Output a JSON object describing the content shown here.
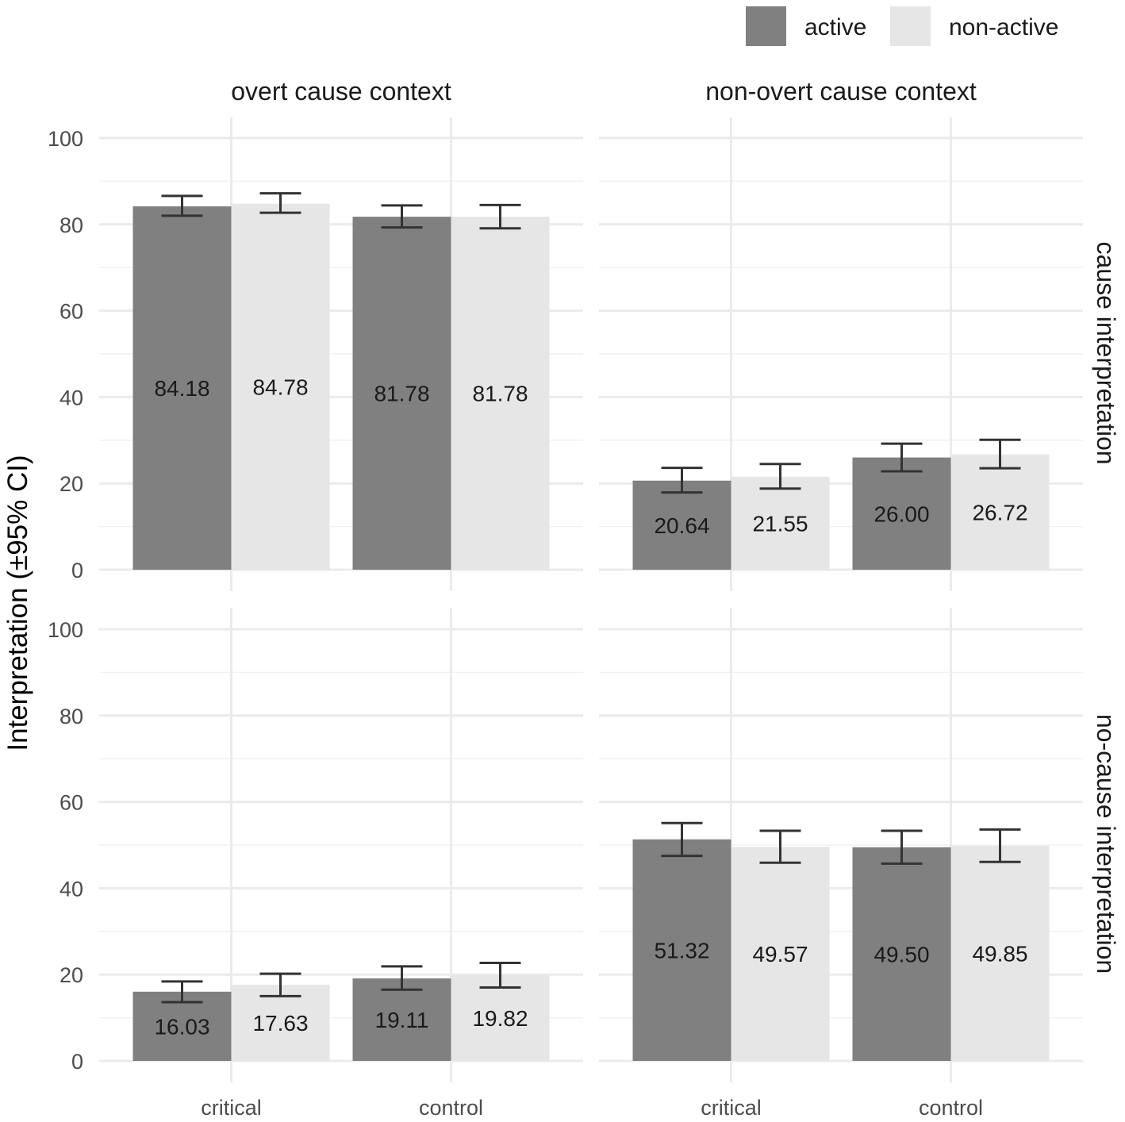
{
  "chart_data": {
    "type": "bar",
    "ylabel": "Interpretation (±95% CI)",
    "ylim": [
      0,
      100
    ],
    "yticks": [
      0,
      20,
      40,
      60,
      80,
      100
    ],
    "categories": [
      "critical",
      "control"
    ],
    "legend": {
      "position": "top-right",
      "entries": [
        {
          "name": "active",
          "color": "#808080"
        },
        {
          "name": "non-active",
          "color": "#e6e6e6"
        }
      ]
    },
    "column_facets": [
      "overt cause context",
      "non-overt cause context"
    ],
    "row_facets": [
      "cause interpretation",
      "no-cause interpretation"
    ],
    "panels": [
      {
        "column": "overt cause context",
        "row": "cause interpretation",
        "series": [
          {
            "name": "active",
            "values": [
              84.18,
              81.78
            ],
            "labels": [
              "84.18",
              "81.78"
            ],
            "ci_low": [
              82.0,
              79.3
            ],
            "ci_high": [
              86.6,
              84.4
            ]
          },
          {
            "name": "non-active",
            "values": [
              84.78,
              81.78
            ],
            "labels": [
              "84.78",
              "81.78"
            ],
            "ci_low": [
              82.7,
              79.1
            ],
            "ci_high": [
              87.2,
              84.5
            ]
          }
        ]
      },
      {
        "column": "non-overt cause context",
        "row": "cause interpretation",
        "series": [
          {
            "name": "active",
            "values": [
              20.64,
              26.0
            ],
            "labels": [
              "20.64",
              "26.00"
            ],
            "ci_low": [
              17.9,
              22.8
            ],
            "ci_high": [
              23.6,
              29.2
            ]
          },
          {
            "name": "non-active",
            "values": [
              21.55,
              26.72
            ],
            "labels": [
              "21.55",
              "26.72"
            ],
            "ci_low": [
              18.8,
              23.5
            ],
            "ci_high": [
              24.5,
              30.1
            ]
          }
        ]
      },
      {
        "column": "overt cause context",
        "row": "no-cause interpretation",
        "series": [
          {
            "name": "active",
            "values": [
              16.03,
              19.11
            ],
            "labels": [
              "16.03",
              "19.11"
            ],
            "ci_low": [
              13.6,
              16.5
            ],
            "ci_high": [
              18.4,
              21.9
            ]
          },
          {
            "name": "non-active",
            "values": [
              17.63,
              19.82
            ],
            "labels": [
              "17.63",
              "19.82"
            ],
            "ci_low": [
              15.0,
              17.0
            ],
            "ci_high": [
              20.2,
              22.7
            ]
          }
        ]
      },
      {
        "column": "non-overt cause context",
        "row": "no-cause interpretation",
        "series": [
          {
            "name": "active",
            "values": [
              51.32,
              49.5
            ],
            "labels": [
              "51.32",
              "49.50"
            ],
            "ci_low": [
              47.5,
              45.7
            ],
            "ci_high": [
              55.1,
              53.3
            ]
          },
          {
            "name": "non-active",
            "values": [
              49.57,
              49.85
            ],
            "labels": [
              "49.57",
              "49.85"
            ],
            "ci_low": [
              45.9,
              46.1
            ],
            "ci_high": [
              53.3,
              53.6
            ]
          }
        ]
      }
    ]
  }
}
